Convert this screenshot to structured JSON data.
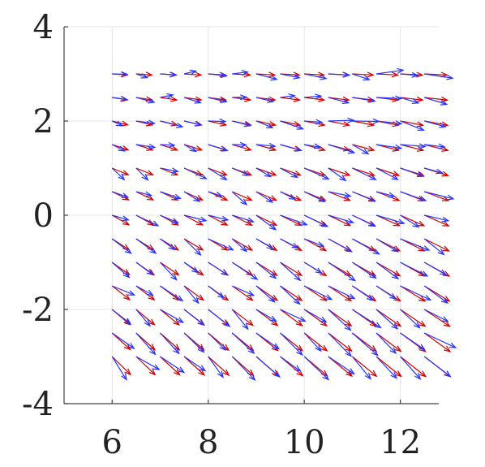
{
  "chart_data": {
    "type": "quiver",
    "title": "",
    "xlabel": "",
    "ylabel": "",
    "xlim": [
      5,
      12.8
    ],
    "ylim": [
      -4,
      4
    ],
    "grid": true,
    "x_ticks": [
      6,
      8,
      10,
      12
    ],
    "y_ticks": [
      4,
      2,
      0,
      -2,
      -4
    ],
    "x_tick_labels": [
      "6",
      "8",
      "10",
      "12"
    ],
    "y_tick_labels": [
      "4",
      "2",
      "0",
      "-2",
      "-4"
    ],
    "grid_x": [
      6,
      6.5,
      7,
      7.5,
      8,
      8.5,
      9,
      9.5,
      10,
      10.5,
      11,
      11.5,
      12,
      12.5
    ],
    "grid_y": [
      3,
      2.5,
      2,
      1.5,
      1,
      0.5,
      0,
      -0.5,
      -1,
      -1.5,
      -2,
      -2.5,
      -3
    ],
    "vector_scale": 0.45,
    "series": [
      {
        "color": "#d40000",
        "kind": "reference",
        "u": 1.0,
        "v_at_top": -0.05,
        "v_at_bottom": -0.85,
        "u_growth": 0.35
      },
      {
        "color": "#2633ff",
        "kind": "estimate",
        "noise": 0.35
      }
    ]
  }
}
